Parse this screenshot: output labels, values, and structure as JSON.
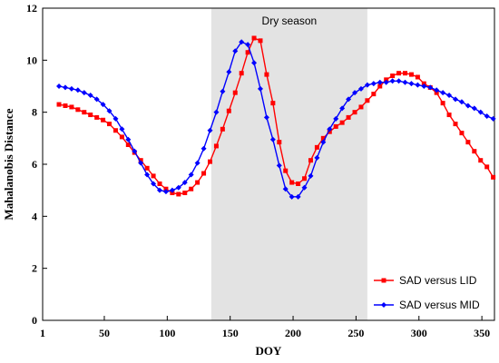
{
  "chart_data": {
    "type": "line",
    "xlabel": "DOY",
    "ylabel": "Mahalanobis Distance",
    "xlim": [
      1,
      360
    ],
    "ylim": [
      0,
      12
    ],
    "x_ticks": [
      "1",
      "50",
      "100",
      "150",
      "200",
      "250",
      "300",
      "350"
    ],
    "y_ticks": [
      "0",
      "2",
      "4",
      "6",
      "8",
      "10",
      "12"
    ],
    "annotation": {
      "label": "Dry season",
      "x_start": 135,
      "x_end": 259
    },
    "legend_position": "bottom-right",
    "series": [
      {
        "name": "SAD versus LID",
        "color": "#ff0000",
        "marker": "square",
        "x": [
          14,
          19,
          24,
          29,
          34,
          39,
          44,
          49,
          54,
          59,
          64,
          69,
          74,
          79,
          84,
          89,
          94,
          99,
          104,
          109,
          114,
          119,
          124,
          129,
          134,
          139,
          144,
          149,
          154,
          159,
          164,
          169,
          174,
          179,
          184,
          189,
          194,
          199,
          204,
          209,
          214,
          219,
          224,
          229,
          234,
          239,
          244,
          249,
          254,
          259,
          264,
          269,
          274,
          279,
          284,
          289,
          294,
          299,
          304,
          309,
          314,
          319,
          324,
          329,
          334,
          339,
          344,
          349,
          354,
          359
        ],
        "values": [
          8.3,
          8.25,
          8.2,
          8.1,
          8.0,
          7.9,
          7.8,
          7.7,
          7.55,
          7.3,
          7.05,
          6.75,
          6.45,
          6.15,
          5.85,
          5.55,
          5.25,
          5.05,
          4.9,
          4.85,
          4.9,
          5.05,
          5.3,
          5.65,
          6.1,
          6.7,
          7.35,
          8.05,
          8.75,
          9.5,
          10.3,
          10.85,
          10.75,
          9.45,
          8.35,
          6.85,
          5.75,
          5.3,
          5.25,
          5.45,
          6.15,
          6.65,
          7.0,
          7.25,
          7.45,
          7.6,
          7.8,
          8.0,
          8.2,
          8.45,
          8.7,
          9.0,
          9.25,
          9.4,
          9.5,
          9.5,
          9.45,
          9.35,
          9.1,
          8.95,
          8.75,
          8.35,
          7.9,
          7.55,
          7.2,
          6.85,
          6.5,
          6.15,
          5.9,
          5.5
        ]
      },
      {
        "name": "SAD versus MID",
        "color": "#0000ff",
        "marker": "diamond",
        "x": [
          14,
          19,
          24,
          29,
          34,
          39,
          44,
          49,
          54,
          59,
          64,
          69,
          74,
          79,
          84,
          89,
          94,
          99,
          104,
          109,
          114,
          119,
          124,
          129,
          134,
          139,
          144,
          149,
          154,
          159,
          164,
          169,
          174,
          179,
          184,
          189,
          194,
          199,
          204,
          209,
          214,
          219,
          224,
          229,
          234,
          239,
          244,
          249,
          254,
          259,
          264,
          269,
          274,
          279,
          284,
          289,
          294,
          299,
          304,
          309,
          314,
          319,
          324,
          329,
          334,
          339,
          344,
          349,
          354,
          359
        ],
        "values": [
          9.0,
          8.95,
          8.9,
          8.85,
          8.75,
          8.65,
          8.5,
          8.3,
          8.05,
          7.75,
          7.35,
          6.95,
          6.5,
          6.05,
          5.6,
          5.25,
          5.0,
          4.95,
          5.0,
          5.1,
          5.3,
          5.6,
          6.05,
          6.6,
          7.3,
          8.0,
          8.8,
          9.55,
          10.35,
          10.7,
          10.6,
          9.9,
          8.9,
          7.8,
          6.95,
          5.95,
          5.05,
          4.75,
          4.75,
          5.1,
          5.55,
          6.25,
          6.85,
          7.35,
          7.75,
          8.15,
          8.5,
          8.75,
          8.9,
          9.05,
          9.1,
          9.15,
          9.15,
          9.2,
          9.2,
          9.15,
          9.1,
          9.05,
          9.0,
          8.95,
          8.85,
          8.75,
          8.65,
          8.5,
          8.4,
          8.25,
          8.15,
          8.0,
          7.85,
          7.75
        ]
      }
    ]
  }
}
